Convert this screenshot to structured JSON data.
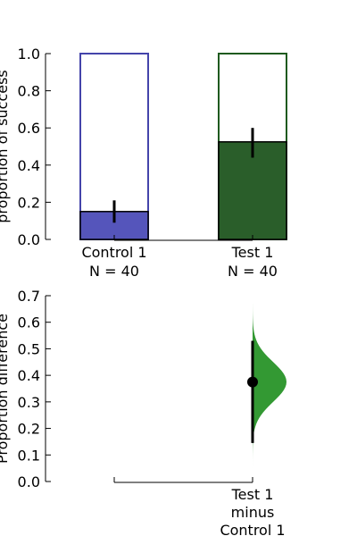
{
  "chart_data": [
    {
      "type": "bar",
      "ylabel": "proportion of success",
      "ylim": [
        0,
        1.0
      ],
      "yticks": [
        0.0,
        0.2,
        0.4,
        0.6,
        0.8,
        1.0
      ],
      "yticklabels": [
        "0.0",
        "0.2",
        "0.4",
        "0.6",
        "0.8",
        "1.0"
      ],
      "categories": [
        {
          "name": "Control 1",
          "n_label": "N = 40",
          "proportion": 0.15,
          "ci": [
            0.09,
            0.21
          ],
          "fill_color": "#5555bb",
          "edge_color": "#4444aa"
        },
        {
          "name": "Test 1",
          "n_label": "N = 40",
          "proportion": 0.525,
          "ci": [
            0.44,
            0.6
          ],
          "fill_color": "#2a5e2a",
          "edge_color": "#1f5a1f"
        }
      ]
    },
    {
      "type": "area",
      "ylabel": "Proportion difference",
      "ylim": [
        0,
        0.7
      ],
      "yticks": [
        0.0,
        0.1,
        0.2,
        0.3,
        0.4,
        0.5,
        0.6,
        0.7
      ],
      "yticklabels": [
        "0.0",
        "0.1",
        "0.2",
        "0.3",
        "0.4",
        "0.5",
        "0.6",
        "0.7"
      ],
      "comparison_label": [
        "Test 1",
        "minus",
        "Control 1"
      ],
      "point_estimate": 0.375,
      "ci": [
        0.145,
        0.53
      ],
      "distribution_color": "#339933",
      "distribution_min": 0.04,
      "distribution_max": 0.67
    }
  ]
}
